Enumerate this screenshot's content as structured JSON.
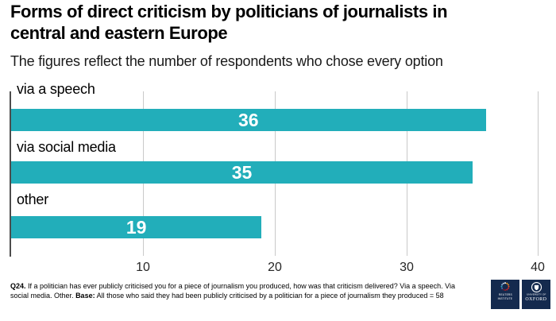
{
  "title": "Forms of direct criticism by politicians of journalists in central and eastern Europe",
  "subtitle": "The figures reflect the number of respondents who chose every option",
  "chart_data": {
    "type": "bar",
    "orientation": "horizontal",
    "title": "Forms of direct criticism by politicians of journalists in central and eastern Europe",
    "categories": [
      "via a speech",
      "via social media",
      "other"
    ],
    "values": [
      36,
      35,
      19
    ],
    "xlim": [
      0,
      40
    ],
    "xticks": [
      10,
      20,
      30,
      40
    ],
    "grid": "vertical-gridlines-on",
    "legend": "none",
    "bar_color": "#22aeba",
    "value_label_color": "#ffffff",
    "value_labels_position": "inside-center"
  },
  "footer": {
    "q_label": "Q24.",
    "line1_rest": "If a politician has ever publicly criticised you for a piece of journalism you produced, how was that criticism delivered? Via a speech. Via",
    "line2_start": "social media. Other.",
    "base_label": "Base:",
    "line2_rest": "All those who said they had been publicly criticised by a politician for a piece of journalism they produced = 58"
  },
  "logos": {
    "background_color": "#142a4e",
    "reuters": {
      "line1": "REUTERS",
      "line2": "INSTITUTE"
    },
    "oxford": {
      "line1": "UNIVERSITY OF",
      "line2": "OXFORD"
    }
  }
}
